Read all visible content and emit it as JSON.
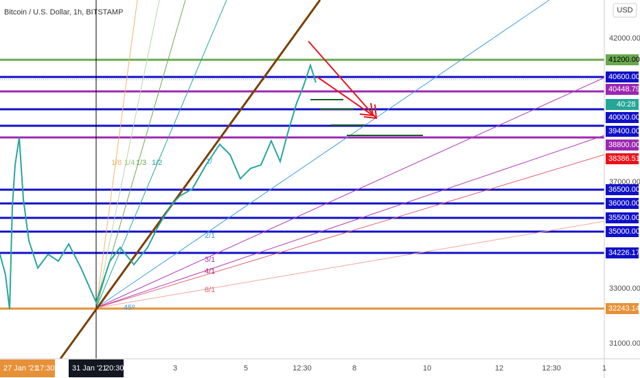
{
  "header": {
    "title": "Bitcoin / U.S. Dollar, 1h, BITSTAMP",
    "currency": "USD"
  },
  "price_axis": {
    "labels": [
      "42000.00",
      "37000.00",
      "33000.00",
      "31000.00"
    ]
  },
  "price_tags": [
    "41200.00",
    "40600.00",
    "40448.79",
    "40:28",
    "40000.00",
    "39400.00",
    "38800.00",
    "38386.51",
    "36500.00",
    "36000.00",
    "35500.00",
    "35000.00",
    "34226.17",
    "32243.14"
  ],
  "time_axis": {
    "labels": [
      "27 Jan '21",
      "17:30",
      "31 Jan '21",
      "20:30",
      "3",
      "5",
      "12:30",
      "8",
      "10",
      "12",
      "12:30",
      "1"
    ]
  },
  "fan_labels": [
    "1/8",
    "1/4",
    "1/3",
    "1/2",
    "1/",
    "2/1",
    "3/1",
    "4/1",
    "8/1",
    "45º"
  ]
}
